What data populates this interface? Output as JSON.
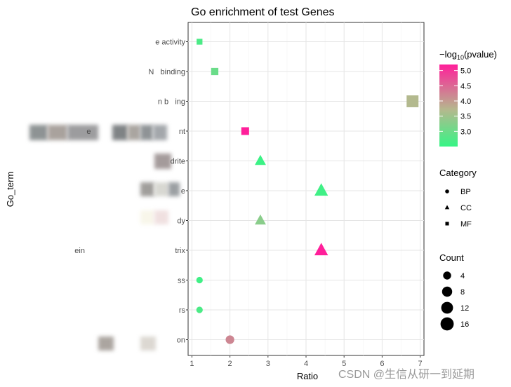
{
  "chart_data": {
    "type": "scatter",
    "title": "Go enrichment of test Genes",
    "xlabel": "Ratio",
    "ylabel": "Go_term",
    "xlim": [
      0.9,
      7.1
    ],
    "xticks": [
      1,
      2,
      3,
      4,
      5,
      6,
      7
    ],
    "grid": true,
    "y_tick_labels": [
      "e activity",
      "N   binding",
      "n b   ing",
      "e                                         nt",
      "drite",
      "e",
      "dy",
      "ein                                          trix",
      "ss",
      "rs",
      "on"
    ],
    "points": [
      {
        "ratio": 1.2,
        "pvalue_log10": 2.7,
        "category": "MF",
        "count": 2
      },
      {
        "ratio": 1.6,
        "pvalue_log10": 3.0,
        "category": "MF",
        "count": 4
      },
      {
        "ratio": 6.8,
        "pvalue_log10": 3.7,
        "category": "MF",
        "count": 16
      },
      {
        "ratio": 2.4,
        "pvalue_log10": 5.2,
        "category": "MF",
        "count": 5
      },
      {
        "ratio": 2.8,
        "pvalue_log10": 2.55,
        "category": "CC",
        "count": 7
      },
      {
        "ratio": 4.4,
        "pvalue_log10": 2.6,
        "category": "CC",
        "count": 12
      },
      {
        "ratio": 2.8,
        "pvalue_log10": 3.3,
        "category": "CC",
        "count": 7
      },
      {
        "ratio": 4.4,
        "pvalue_log10": 5.2,
        "category": "CC",
        "count": 12
      },
      {
        "ratio": 1.2,
        "pvalue_log10": 2.6,
        "category": "BP",
        "count": 2
      },
      {
        "ratio": 1.2,
        "pvalue_log10": 2.7,
        "category": "BP",
        "count": 2
      },
      {
        "ratio": 2.0,
        "pvalue_log10": 4.2,
        "category": "BP",
        "count": 5
      }
    ],
    "legend": {
      "placement": "right",
      "color": {
        "title_prefix": "−log",
        "title_sub": "10",
        "title_suffix": "(pvalue)",
        "low_color": "#36f585",
        "mid_color": "#b5b88e",
        "high_color": "#ff1f9a",
        "range": [
          2.5,
          5.2
        ],
        "breaks": [
          "5.0",
          "4.5",
          "4.0",
          "3.5",
          "3.0"
        ],
        "break_values": [
          5.0,
          4.5,
          4.0,
          3.5,
          3.0
        ]
      },
      "shape": {
        "title": "Category",
        "items": [
          "BP",
          "CC",
          "MF"
        ]
      },
      "size": {
        "title": "Count",
        "items": [
          "4",
          "8",
          "12",
          "16"
        ],
        "item_values": [
          4,
          8,
          12,
          16
        ]
      }
    }
  },
  "watermark": "CSDN @生信从研一到延期"
}
